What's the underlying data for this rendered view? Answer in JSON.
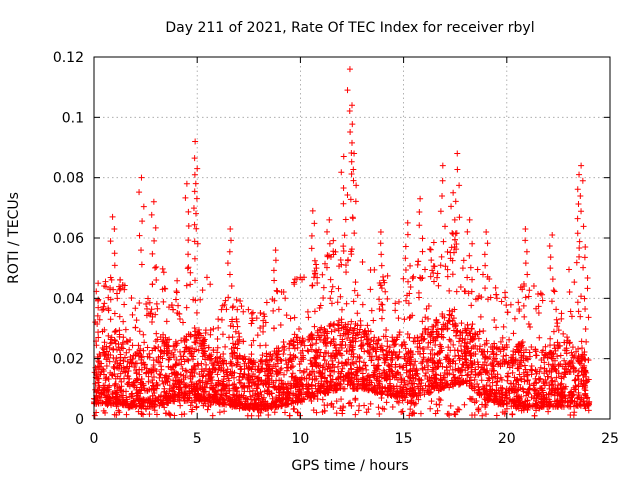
{
  "chart_data": {
    "type": "scatter",
    "marker": "plus",
    "title": "Day 211 of 2021, Rate Of TEC Index for receiver rbyl",
    "xlabel": "GPS time / hours",
    "ylabel": "ROTI / TECUs",
    "xlim": [
      0,
      25
    ],
    "ylim": [
      0,
      0.12
    ],
    "xticks": [
      0,
      5,
      10,
      15,
      20,
      25
    ],
    "xtick_labels": [
      "0",
      "5",
      "10",
      "15",
      "20",
      "25"
    ],
    "yticks": [
      0,
      0.02,
      0.04,
      0.06,
      0.08,
      0.1,
      0.12
    ],
    "ytick_labels": [
      "0",
      "0.02",
      "0.04",
      "0.06",
      "0.08",
      "0.1",
      "0.12"
    ],
    "grid": true,
    "series_color": "#ff0000",
    "data_range_x": [
      0,
      24
    ],
    "peak_points": [
      {
        "x": 0.2,
        "y": 0.045
      },
      {
        "x": 0.9,
        "y": 0.067
      },
      {
        "x": 2.3,
        "y": 0.08
      },
      {
        "x": 2.9,
        "y": 0.072
      },
      {
        "x": 4.5,
        "y": 0.078
      },
      {
        "x": 4.9,
        "y": 0.092
      },
      {
        "x": 5.0,
        "y": 0.083
      },
      {
        "x": 6.6,
        "y": 0.063
      },
      {
        "x": 8.8,
        "y": 0.056
      },
      {
        "x": 10.6,
        "y": 0.069
      },
      {
        "x": 11.4,
        "y": 0.066
      },
      {
        "x": 12.1,
        "y": 0.087
      },
      {
        "x": 12.4,
        "y": 0.116
      },
      {
        "x": 12.5,
        "y": 0.104
      },
      {
        "x": 12.6,
        "y": 0.088
      },
      {
        "x": 13.9,
        "y": 0.062
      },
      {
        "x": 15.2,
        "y": 0.065
      },
      {
        "x": 15.8,
        "y": 0.073
      },
      {
        "x": 16.9,
        "y": 0.084
      },
      {
        "x": 17.4,
        "y": 0.075
      },
      {
        "x": 17.6,
        "y": 0.088
      },
      {
        "x": 18.2,
        "y": 0.066
      },
      {
        "x": 19.0,
        "y": 0.062
      },
      {
        "x": 20.9,
        "y": 0.063
      },
      {
        "x": 22.2,
        "y": 0.061
      },
      {
        "x": 23.6,
        "y": 0.084
      },
      {
        "x": 23.5,
        "y": 0.081
      },
      {
        "x": 23.8,
        "y": 0.057
      }
    ],
    "envelope": {
      "hours": [
        0,
        1,
        2,
        3,
        4,
        5,
        6,
        7,
        8,
        9,
        10,
        11,
        12,
        13,
        14,
        15,
        16,
        17,
        18,
        19,
        20,
        21,
        22,
        23,
        24
      ],
      "upper": [
        0.04,
        0.05,
        0.04,
        0.052,
        0.048,
        0.055,
        0.04,
        0.04,
        0.035,
        0.045,
        0.05,
        0.055,
        0.062,
        0.055,
        0.05,
        0.05,
        0.055,
        0.065,
        0.058,
        0.048,
        0.045,
        0.047,
        0.04,
        0.05,
        0.035
      ],
      "typical_low": [
        0.005,
        0.005,
        0.004,
        0.004,
        0.006,
        0.006,
        0.005,
        0.004,
        0.003,
        0.004,
        0.006,
        0.008,
        0.01,
        0.01,
        0.008,
        0.007,
        0.008,
        0.01,
        0.012,
        0.006,
        0.004,
        0.004,
        0.004,
        0.004,
        0.004
      ]
    }
  }
}
